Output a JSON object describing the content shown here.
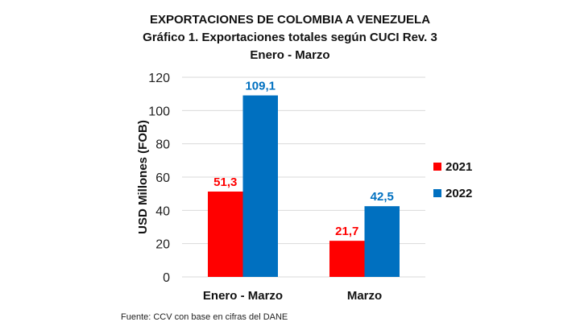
{
  "chart_data": {
    "type": "bar",
    "title": "EXPORTACIONES DE COLOMBIA A VENEZUELA",
    "subtitle": "Gráfico 1. Exportaciones totales según CUCI Rev. 3",
    "subtitle2": "Enero - Marzo",
    "xlabel": "",
    "ylabel": "USD Millones (FOB)",
    "ylim": [
      0,
      120
    ],
    "yticks": [
      0,
      20,
      40,
      60,
      80,
      100,
      120
    ],
    "grid": true,
    "legend_position": "right",
    "categories": [
      "Enero - Marzo",
      "Marzo"
    ],
    "series": [
      {
        "name": "2021",
        "values": [
          51.3,
          21.7
        ],
        "labels": [
          "51,3",
          "21,7"
        ],
        "color": "#ff0000",
        "label_color": "#ff0000"
      },
      {
        "name": "2022",
        "values": [
          109.1,
          42.5
        ],
        "labels": [
          "109,1",
          "42,5"
        ],
        "color": "#0070c0",
        "label_color": "#0070c0"
      }
    ]
  },
  "source": "Fuente: CCV con base en cifras del DANE"
}
